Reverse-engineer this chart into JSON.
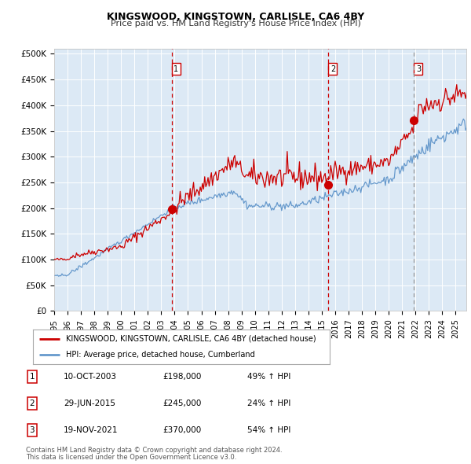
{
  "title": "KINGSWOOD, KINGSTOWN, CARLISLE, CA6 4BY",
  "subtitle": "Price paid vs. HM Land Registry's House Price Index (HPI)",
  "ylabel_ticks": [
    "£0",
    "£50K",
    "£100K",
    "£150K",
    "£200K",
    "£250K",
    "£300K",
    "£350K",
    "£400K",
    "£450K",
    "£500K"
  ],
  "ytick_values": [
    0,
    50000,
    100000,
    150000,
    200000,
    250000,
    300000,
    350000,
    400000,
    450000,
    500000
  ],
  "xlim_start": 1995.0,
  "xlim_end": 2025.8,
  "ylim_min": 0,
  "ylim_max": 510000,
  "sale_dates": [
    2003.78,
    2015.49,
    2021.89
  ],
  "sale_prices": [
    198000,
    245000,
    370000
  ],
  "sale_labels": [
    "1",
    "2",
    "3"
  ],
  "line1_color": "#cc0000",
  "line2_color": "#6699cc",
  "plot_bg": "#dce9f5",
  "legend_line1": "KINGSWOOD, KINGSTOWN, CARLISLE, CA6 4BY (detached house)",
  "legend_line2": "HPI: Average price, detached house, Cumberland",
  "table_data": [
    [
      "1",
      "10-OCT-2003",
      "£198,000",
      "49% ↑ HPI"
    ],
    [
      "2",
      "29-JUN-2015",
      "£245,000",
      "24% ↑ HPI"
    ],
    [
      "3",
      "19-NOV-2021",
      "£370,000",
      "54% ↑ HPI"
    ]
  ],
  "footnote1": "Contains HM Land Registry data © Crown copyright and database right 2024.",
  "footnote2": "This data is licensed under the Open Government Licence v3.0."
}
